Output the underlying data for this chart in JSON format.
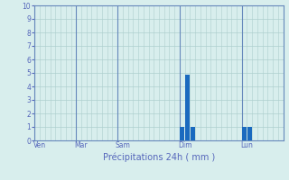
{
  "title": "Précipitations 24h ( mm )",
  "bar_color": "#1a6abf",
  "bg_color": "#d8eeed",
  "grid_color": "#aecfce",
  "axis_color": "#6688bb",
  "text_color": "#5566bb",
  "ylim": [
    0,
    10
  ],
  "yticks": [
    0,
    1,
    2,
    3,
    4,
    5,
    6,
    7,
    8,
    9,
    10
  ],
  "num_bars": 48,
  "bar_values": [
    0,
    0,
    0,
    0,
    0,
    0,
    0,
    0,
    0,
    0,
    0,
    0,
    0,
    0,
    0,
    0,
    0,
    0,
    0,
    0,
    0,
    0,
    0,
    0,
    0,
    0,
    0,
    0,
    1.0,
    4.9,
    1.0,
    0,
    0,
    0,
    0,
    0,
    0,
    0,
    0,
    0,
    1.0,
    1.0,
    0,
    0,
    0,
    0,
    0,
    0
  ],
  "day_labels": [
    "Ven",
    "Mar",
    "Sam",
    "Dim",
    "Lun"
  ],
  "day_tick_positions": [
    0.5,
    8.5,
    16.5,
    28.5,
    40.5
  ],
  "vline_positions": [
    0,
    8,
    16,
    28,
    40
  ],
  "figwidth": 3.2,
  "figheight": 2.0,
  "dpi": 100
}
